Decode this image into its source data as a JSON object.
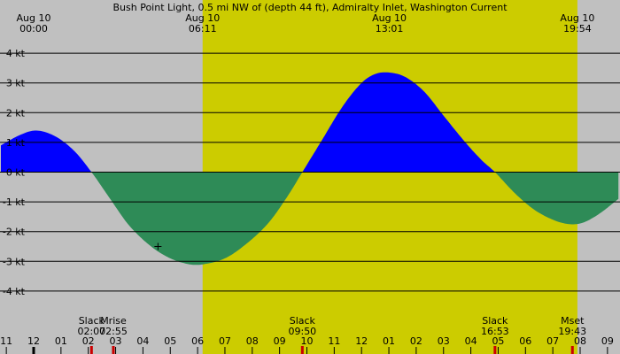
{
  "chart_data": {
    "type": "area",
    "title": "Bush Point Light, 0.5 mi NW of (depth 44 ft), Admiralty Inlet, Washington Current",
    "y_unit": "kt",
    "y_ticks": [
      4,
      3,
      2,
      1,
      0,
      -1,
      -2,
      -3,
      -4
    ],
    "y_tick_labels": [
      "4 kt",
      "3 kt",
      "2 kt",
      "1 kt",
      "0 kt",
      "-1 kt",
      "-2 kt",
      "-3 kt",
      "-4 kt"
    ],
    "ylim": [
      -5,
      4.5
    ],
    "x_unit": "hours",
    "xlim": [
      -1.2,
      21.4
    ],
    "grid": "horizontal",
    "colors": {
      "background": "#c0c0c0",
      "daylight": "#cccc00",
      "flood": "#0000ff",
      "ebb": "#2e8b57",
      "gridline": "#000000"
    },
    "daylight": {
      "start_hour": 6.183,
      "end_hour": 19.9
    },
    "top_labels": [
      {
        "hour": 0,
        "date": "Aug 10",
        "time": "00:00"
      },
      {
        "hour": 6.183,
        "date": "Aug 10",
        "time": "06:11"
      },
      {
        "hour": 13.017,
        "date": "Aug 10",
        "time": "13:01"
      },
      {
        "hour": 19.9,
        "date": "Aug 10",
        "time": "19:54"
      }
    ],
    "events": [
      {
        "hour": 2.117,
        "label": "Slack",
        "time": "02:07",
        "align": "middle"
      },
      {
        "hour": 2.917,
        "label": "Mrise",
        "time": "02:55",
        "align": "middle"
      },
      {
        "hour": 9.833,
        "label": "Slack",
        "time": "09:50",
        "align": "middle"
      },
      {
        "hour": 16.883,
        "label": "Slack",
        "time": "16:53",
        "align": "middle"
      },
      {
        "hour": 19.717,
        "label": "Mset",
        "time": "19:43",
        "align": "middle"
      }
    ],
    "hour_ticks": [
      {
        "hour": -1,
        "label": "11"
      },
      {
        "hour": 0,
        "label": "12"
      },
      {
        "hour": 1,
        "label": "01"
      },
      {
        "hour": 2,
        "label": "02"
      },
      {
        "hour": 3,
        "label": "03"
      },
      {
        "hour": 4,
        "label": "04"
      },
      {
        "hour": 5,
        "label": "05"
      },
      {
        "hour": 6,
        "label": "06"
      },
      {
        "hour": 7,
        "label": "07"
      },
      {
        "hour": 8,
        "label": "08"
      },
      {
        "hour": 9,
        "label": "09"
      },
      {
        "hour": 10,
        "label": "10"
      },
      {
        "hour": 11,
        "label": "11"
      },
      {
        "hour": 12,
        "label": "12"
      },
      {
        "hour": 13,
        "label": "01"
      },
      {
        "hour": 14,
        "label": "02"
      },
      {
        "hour": 15,
        "label": "03"
      },
      {
        "hour": 16,
        "label": "04"
      },
      {
        "hour": 17,
        "label": "05"
      },
      {
        "hour": 18,
        "label": "06"
      },
      {
        "hour": 19,
        "label": "07"
      },
      {
        "hour": 20,
        "label": "08"
      },
      {
        "hour": 21,
        "label": "09"
      }
    ],
    "series": [
      {
        "points": [
          [
            -1.2,
            0.9
          ],
          [
            -0.5,
            1.25
          ],
          [
            0.1,
            1.4
          ],
          [
            0.8,
            1.2
          ],
          [
            1.5,
            0.7
          ],
          [
            2.117,
            0.0
          ],
          [
            2.8,
            -0.9
          ],
          [
            3.5,
            -1.8
          ],
          [
            4.3,
            -2.5
          ],
          [
            5.0,
            -2.9
          ],
          [
            5.7,
            -3.1
          ],
          [
            6.2,
            -3.1
          ],
          [
            7.0,
            -2.9
          ],
          [
            7.8,
            -2.4
          ],
          [
            8.6,
            -1.7
          ],
          [
            9.3,
            -0.8
          ],
          [
            9.833,
            0.0
          ],
          [
            10.5,
            1.0
          ],
          [
            11.3,
            2.2
          ],
          [
            12.0,
            3.0
          ],
          [
            12.5,
            3.3
          ],
          [
            13.0,
            3.35
          ],
          [
            13.6,
            3.2
          ],
          [
            14.3,
            2.7
          ],
          [
            15.0,
            1.9
          ],
          [
            15.8,
            1.0
          ],
          [
            16.4,
            0.4
          ],
          [
            16.883,
            0.0
          ],
          [
            17.6,
            -0.7
          ],
          [
            18.3,
            -1.25
          ],
          [
            19.0,
            -1.6
          ],
          [
            19.6,
            -1.75
          ],
          [
            20.1,
            -1.7
          ],
          [
            20.7,
            -1.4
          ],
          [
            21.4,
            -0.9
          ]
        ]
      }
    ],
    "annotations": [
      {
        "type": "marker",
        "symbol": "+",
        "hour": 4.55,
        "value": -2.5
      }
    ]
  }
}
